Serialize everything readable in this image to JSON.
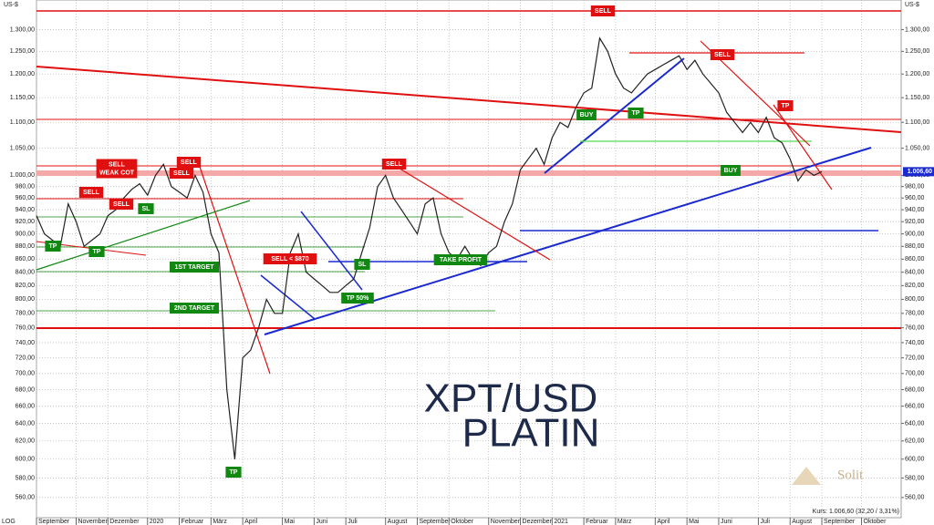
{
  "chart_data": {
    "type": "line",
    "title": "XPT/USD",
    "subtitle": "PLATIN",
    "y_unit": "US-$",
    "scale_label": "LOG",
    "log_scale": true,
    "grid": true,
    "logo": "Solit",
    "footer": "Kurs: 1.006,60 (32,20 / 3,31%)",
    "price_label": "1.006,60",
    "categories": [
      "September",
      null,
      null,
      null,
      null,
      "November",
      null,
      null,
      null,
      "Dezember",
      null,
      null,
      null,
      null,
      "2020",
      null,
      null,
      null,
      "Februar",
      null,
      null,
      null,
      "März",
      null,
      null,
      null,
      "April",
      null,
      null,
      null,
      null,
      "Mai",
      null,
      null,
      null,
      "Juni",
      null,
      null,
      null,
      "Juli",
      null,
      null,
      null,
      null,
      "August",
      null,
      null,
      null,
      "September",
      null,
      null,
      null,
      "Oktober",
      null,
      null,
      null,
      null,
      "November",
      null,
      null,
      null,
      "Dezember",
      null,
      null,
      null,
      "2021",
      null,
      null,
      null,
      "Februar",
      null,
      null,
      null,
      "März",
      null,
      null,
      null,
      null,
      "April",
      null,
      null,
      null,
      "Mai",
      null,
      null,
      null,
      "Juni",
      null,
      null,
      null,
      null,
      "Juli",
      null,
      null,
      null,
      "August",
      null,
      null,
      null,
      "September",
      null,
      null,
      null,
      null,
      "Oktober"
    ],
    "series": [
      {
        "name": "XPT/USD",
        "color": "#222222",
        "values": [
          930,
          900,
          890,
          880,
          950,
          920,
          880,
          890,
          900,
          930,
          940,
          960,
          975,
          985,
          965,
          1000,
          1020,
          980,
          970,
          960,
          1000,
          970,
          900,
          870,
          680,
          600,
          720,
          730,
          760,
          800,
          780,
          780,
          870,
          900,
          840,
          830,
          820,
          810,
          810,
          820,
          830,
          870,
          910,
          980,
          1000,
          960,
          940,
          920,
          900,
          950,
          960,
          900,
          870,
          860,
          880,
          860,
          850,
          870,
          880,
          920,
          950,
          1010,
          1030,
          1050,
          1020,
          1070,
          1100,
          1090,
          1130,
          1160,
          1170,
          1280,
          1250,
          1200,
          1170,
          1160,
          1180,
          1200,
          1210,
          1220,
          1230,
          1240,
          1210,
          1230,
          1200,
          1180,
          1160,
          1120,
          1100,
          1080,
          1100,
          1080,
          1110,
          1070,
          1060,
          1030,
          990,
          1010,
          1000,
          1006.6,
          null,
          null,
          null,
          null,
          null
        ]
      }
    ],
    "ylim": [
      540,
      1371
    ],
    "yticks": [
      {
        "value": 560,
        "label": "560,00"
      },
      {
        "value": 580,
        "label": "580,00"
      },
      {
        "value": 600,
        "label": "600,00"
      },
      {
        "value": 620,
        "label": "620,00"
      },
      {
        "value": 640,
        "label": "640,00"
      },
      {
        "value": 660,
        "label": "660,00"
      },
      {
        "value": 680,
        "label": "680,00"
      },
      {
        "value": 700,
        "label": "700,00"
      },
      {
        "value": 720,
        "label": "720,00"
      },
      {
        "value": 740,
        "label": "740,00"
      },
      {
        "value": 760,
        "label": "760,00"
      },
      {
        "value": 780,
        "label": "780,00"
      },
      {
        "value": 800,
        "label": "800,00"
      },
      {
        "value": 820,
        "label": "820,00"
      },
      {
        "value": 840,
        "label": "840,00"
      },
      {
        "value": 860,
        "label": "860,00"
      },
      {
        "value": 880,
        "label": "880,00"
      },
      {
        "value": 900,
        "label": "900,00"
      },
      {
        "value": 920,
        "label": "920,00"
      },
      {
        "value": 940,
        "label": "940,00"
      },
      {
        "value": 960,
        "label": "960,00"
      },
      {
        "value": 980,
        "label": "980,00"
      },
      {
        "value": 1000,
        "label": "1.000,00"
      },
      {
        "value": 1050,
        "label": "1.050,00"
      },
      {
        "value": 1100,
        "label": "1.100,00"
      },
      {
        "value": 1150,
        "label": "1.150,00"
      },
      {
        "value": 1200,
        "label": "1.200,00"
      },
      {
        "value": 1250,
        "label": "1.250,00"
      },
      {
        "value": 1300,
        "label": "1.300,00"
      }
    ],
    "annotations": [
      {
        "lines": [
          "SELL"
        ],
        "color": "#e01010"
      },
      {
        "lines": [
          "SELL"
        ],
        "color": "#e01010"
      },
      {
        "lines": [
          "TP"
        ],
        "color": "#e01010"
      },
      {
        "lines": [
          "BUY"
        ],
        "color": "#118811"
      },
      {
        "lines": [
          "TP"
        ],
        "color": "#118811"
      },
      {
        "lines": [
          "BUY"
        ],
        "color": "#118811"
      },
      {
        "lines": [
          "SELL"
        ],
        "color": "#e01010"
      },
      {
        "lines": [
          "SELL",
          "WEAK COT"
        ],
        "color": "#e01010"
      },
      {
        "lines": [
          "SELL"
        ],
        "color": "#e01010"
      },
      {
        "lines": [
          "SELL"
        ],
        "color": "#e01010"
      },
      {
        "lines": [
          "SELL"
        ],
        "color": "#e01010"
      },
      {
        "lines": [
          "SELL"
        ],
        "color": "#e01010"
      },
      {
        "lines": [
          "SL"
        ],
        "color": "#118811"
      },
      {
        "lines": [
          "TP"
        ],
        "color": "#118811"
      },
      {
        "lines": [
          "TP"
        ],
        "color": "#118811"
      },
      {
        "lines": [
          "1ST TARGET"
        ],
        "color": "#118811"
      },
      {
        "lines": [
          "SELL < $870"
        ],
        "color": "#e01010"
      },
      {
        "lines": [
          "SL"
        ],
        "color": "#118811"
      },
      {
        "lines": [
          "TAKE PROFIT"
        ],
        "color": "#118811"
      },
      {
        "lines": [
          "TP 50%"
        ],
        "color": "#118811"
      },
      {
        "lines": [
          "2ND TARGET"
        ],
        "color": "#118811"
      },
      {
        "lines": [
          "TP"
        ],
        "color": "#118811"
      }
    ]
  }
}
